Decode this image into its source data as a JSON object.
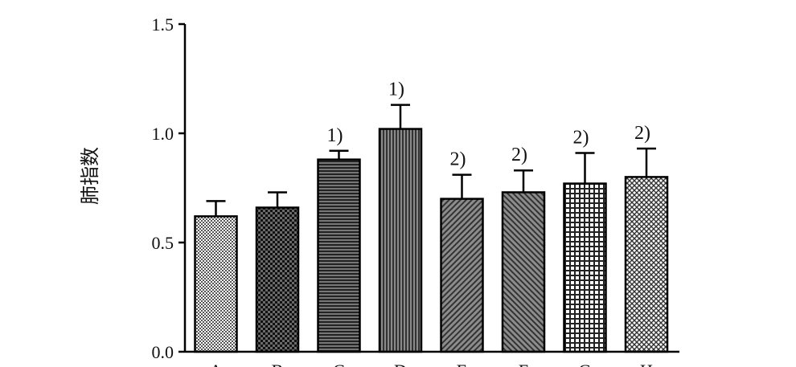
{
  "chart_data": {
    "type": "bar",
    "title": "",
    "xlabel": "",
    "ylabel": "肺指数",
    "ylim": [
      0,
      1.5
    ],
    "y_ticks": [
      "0.0",
      "0.5",
      "1.0",
      "1.5"
    ],
    "categories": [
      "A",
      "B",
      "C",
      "D",
      "E",
      "F",
      "G",
      "H"
    ],
    "values": [
      0.62,
      0.66,
      0.88,
      1.02,
      0.7,
      0.73,
      0.77,
      0.8
    ],
    "errors": [
      0.07,
      0.07,
      0.04,
      0.11,
      0.11,
      0.1,
      0.14,
      0.13
    ],
    "annotations": [
      "",
      "",
      "1)",
      "1)",
      "2)",
      "2)",
      "2)",
      "2)"
    ],
    "bar_patterns": [
      "fine-checker",
      "coarse-checker",
      "horizontal-lines",
      "vertical-lines",
      "diagonal-left",
      "diagonal-right",
      "grid",
      "crosshatch"
    ],
    "grid": false,
    "legend": "none",
    "colors": {
      "bar_outline": "#000000",
      "pattern_dark": "#222222",
      "pattern_light": "#ffffff",
      "axis": "#000000"
    }
  }
}
